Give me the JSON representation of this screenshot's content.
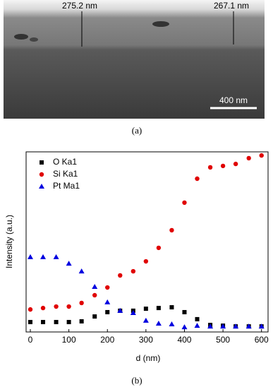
{
  "image_panel": {
    "thickness_labels": [
      "275.2 nm",
      "267.1 nm"
    ],
    "scale_bar": "400 nm",
    "caption": "(a)"
  },
  "chart_data": {
    "type": "scatter",
    "xlabel": "d (nm)",
    "ylabel": "Intensity (a.u.)",
    "xlim": [
      -11,
      617
    ],
    "xticks": [
      0,
      100,
      200,
      300,
      400,
      500,
      600
    ],
    "ylim": [
      0,
      100
    ],
    "x": [
      0,
      33,
      67,
      100,
      133,
      167,
      200,
      233,
      267,
      300,
      333,
      367,
      400,
      433,
      467,
      500,
      533,
      567,
      600
    ],
    "series": [
      {
        "name": "O Ka1",
        "color": "#000000",
        "marker": "square",
        "values": [
          5.5,
          5.5,
          5.5,
          5.5,
          5.9,
          8.6,
          11,
          11.8,
          11.8,
          12.9,
          13.3,
          13.7,
          11,
          7.1,
          3.9,
          3.5,
          3.1,
          3.1,
          3.1
        ]
      },
      {
        "name": "Si Ka1",
        "color": "#e00000",
        "marker": "circle",
        "values": [
          12.5,
          13.3,
          14.1,
          14.1,
          16.1,
          20.4,
          24.7,
          31.4,
          33.7,
          39.2,
          46.7,
          56.5,
          71.8,
          85.1,
          91.4,
          92.2,
          93.3,
          96.5,
          98.0
        ]
      },
      {
        "name": "Pt Ma1",
        "color": "#0000e0",
        "marker": "triangle",
        "values": [
          41.6,
          41.6,
          41.6,
          38,
          33.7,
          25.1,
          16.5,
          11.8,
          10.6,
          6.3,
          4.7,
          4.3,
          2.7,
          3.5,
          3.1,
          3.1,
          3.1,
          3.1,
          3.1
        ]
      }
    ],
    "legend": "upper-left",
    "caption": "(b)"
  }
}
